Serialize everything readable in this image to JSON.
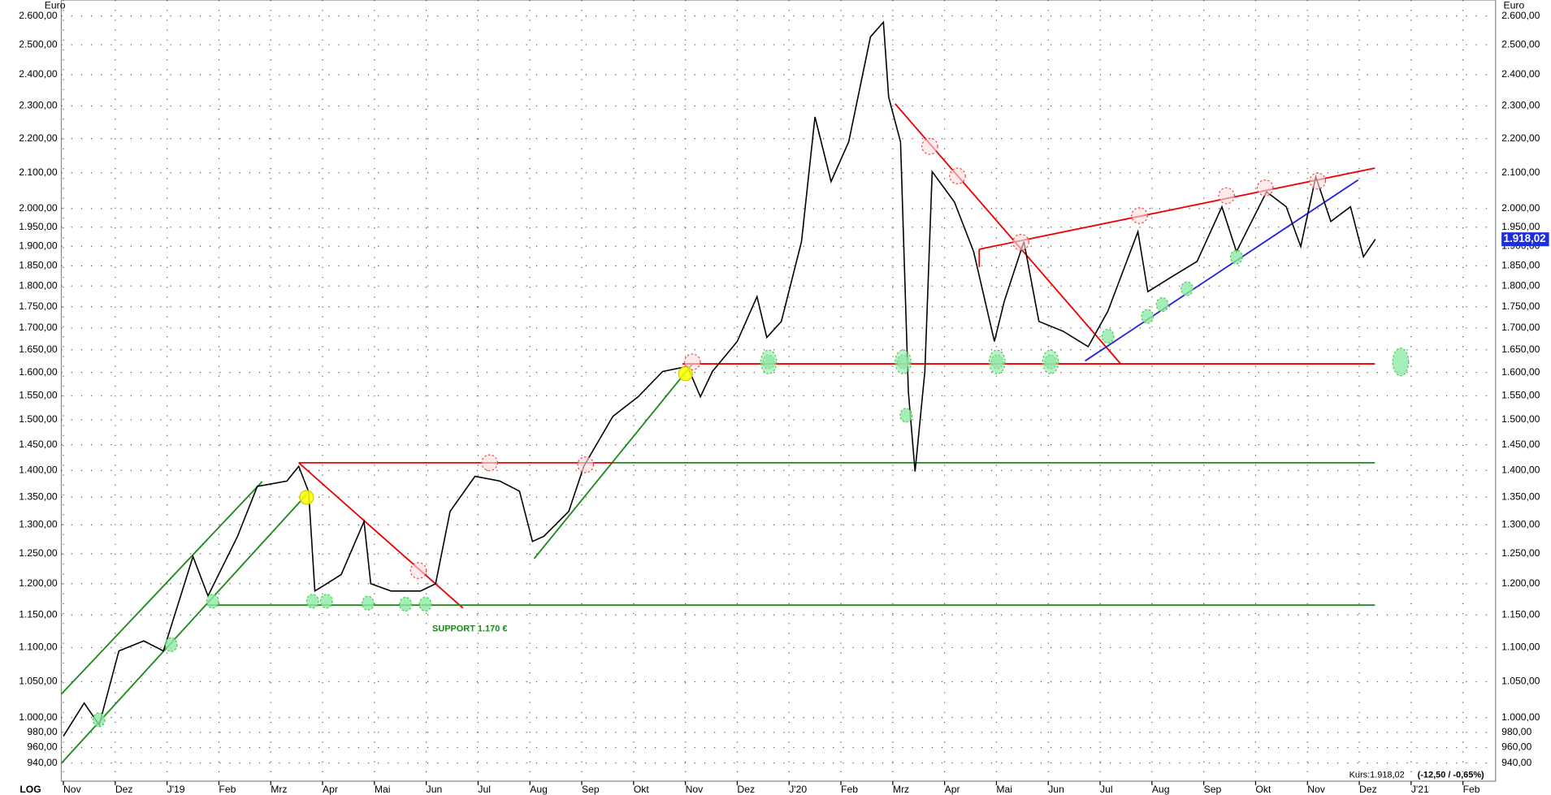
{
  "chart_data": {
    "type": "line",
    "scale": "log",
    "grid": true,
    "color": "#000000",
    "y_unit_left": "Euro",
    "y_unit_right": "Euro",
    "scale_label": "LOG",
    "annotation": "SUPPORT 1.170 €",
    "quote_label": "Kurs:1.918,02",
    "quote_change": "(-12,50 / -0,65%)",
    "last_price": {
      "value": 1918.02,
      "label": "1.918,02"
    },
    "xlim": [
      -0.04,
      27.63
    ],
    "xticks": [
      {
        "value": 0,
        "label": "Nov"
      },
      {
        "value": 1,
        "label": "Dez"
      },
      {
        "value": 2,
        "label": "J'19"
      },
      {
        "value": 3,
        "label": "Feb"
      },
      {
        "value": 4,
        "label": "Mrz"
      },
      {
        "value": 5,
        "label": "Apr"
      },
      {
        "value": 6,
        "label": "Mai"
      },
      {
        "value": 7,
        "label": "Jun"
      },
      {
        "value": 8,
        "label": "Jul"
      },
      {
        "value": 9,
        "label": "Aug"
      },
      {
        "value": 10,
        "label": "Sep"
      },
      {
        "value": 11,
        "label": "Okt"
      },
      {
        "value": 12,
        "label": "Nov"
      },
      {
        "value": 13,
        "label": "Dez"
      },
      {
        "value": 14,
        "label": "J'20"
      },
      {
        "value": 15,
        "label": "Feb"
      },
      {
        "value": 16,
        "label": "Mrz"
      },
      {
        "value": 17,
        "label": "Apr"
      },
      {
        "value": 18,
        "label": "Mai"
      },
      {
        "value": 19,
        "label": "Jun"
      },
      {
        "value": 20,
        "label": "Jul"
      },
      {
        "value": 21,
        "label": "Aug"
      },
      {
        "value": 22,
        "label": "Sep"
      },
      {
        "value": 23,
        "label": "Okt"
      },
      {
        "value": 24,
        "label": "Nov"
      },
      {
        "value": 25,
        "label": "Dez"
      },
      {
        "value": 26,
        "label": "J'21"
      },
      {
        "value": 27,
        "label": "Feb"
      }
    ],
    "ylim": [
      917,
      2657
    ],
    "yticks": [
      {
        "value": 940,
        "label": "940,00"
      },
      {
        "value": 960,
        "label": "960,00"
      },
      {
        "value": 980,
        "label": "980,00"
      },
      {
        "value": 1000,
        "label": "1.000,00"
      },
      {
        "value": 1050,
        "label": "1.050,00"
      },
      {
        "value": 1100,
        "label": "1.100,00"
      },
      {
        "value": 1150,
        "label": "1.150,00"
      },
      {
        "value": 1200,
        "label": "1.200,00"
      },
      {
        "value": 1250,
        "label": "1.250,00"
      },
      {
        "value": 1300,
        "label": "1.300,00"
      },
      {
        "value": 1350,
        "label": "1.350,00"
      },
      {
        "value": 1400,
        "label": "1.400,00"
      },
      {
        "value": 1450,
        "label": "1.450,00"
      },
      {
        "value": 1500,
        "label": "1.500,00"
      },
      {
        "value": 1550,
        "label": "1.550,00"
      },
      {
        "value": 1600,
        "label": "1.600,00"
      },
      {
        "value": 1650,
        "label": "1.650,00"
      },
      {
        "value": 1700,
        "label": "1.700,00"
      },
      {
        "value": 1750,
        "label": "1.750,00"
      },
      {
        "value": 1800,
        "label": "1.800,00"
      },
      {
        "value": 1850,
        "label": "1.850,00"
      },
      {
        "value": 1900,
        "label": "1.900,00"
      },
      {
        "value": 1950,
        "label": "1.950,00"
      },
      {
        "value": 2000,
        "label": "2.000,00"
      },
      {
        "value": 2100,
        "label": "2.100,00"
      },
      {
        "value": 2200,
        "label": "2.200,00"
      },
      {
        "value": 2300,
        "label": "2.300,00"
      },
      {
        "value": 2400,
        "label": "2.400,00"
      },
      {
        "value": 2500,
        "label": "2.500,00"
      },
      {
        "value": 2600,
        "label": "2.600,00"
      }
    ],
    "x": [
      0,
      0.4,
      0.69,
      1.07,
      1.55,
      1.93,
      2.5,
      2.79,
      3.36,
      3.74,
      4.31,
      4.54,
      4.73,
      4.85,
      5.08,
      5.36,
      5.8,
      5.93,
      6.32,
      6.89,
      7.18,
      7.46,
      7.94,
      8.42,
      8.8,
      9.05,
      9.27,
      9.75,
      10.04,
      10.6,
      11.09,
      11.56,
      12.04,
      12.29,
      12.52,
      13,
      13.38,
      13.57,
      13.85,
      14.24,
      14.5,
      14.81,
      15.15,
      15.57,
      15.82,
      15.92,
      16.15,
      16.3,
      16.43,
      16.62,
      16.76,
      17.19,
      17.56,
      17.96,
      18.15,
      18.53,
      18.82,
      19.29,
      19.77,
      20.15,
      20.73,
      20.92,
      21.39,
      21.87,
      22.35,
      22.63,
      23.21,
      23.59,
      23.87,
      24.16,
      24.45,
      24.83,
      25.08,
      25.31
    ],
    "values": [
      975,
      1020,
      990,
      1095,
      1110,
      1095,
      1245,
      1180,
      1280,
      1370,
      1380,
      1408,
      1360,
      1188,
      1200,
      1215,
      1306,
      1200,
      1188,
      1188,
      1200,
      1324,
      1389,
      1380,
      1361,
      1271,
      1280,
      1324,
      1408,
      1507,
      1548,
      1602,
      1613,
      1548,
      1602,
      1669,
      1774,
      1678,
      1715,
      1912,
      2266,
      2075,
      2190,
      2527,
      2578,
      2328,
      2190,
      1559,
      1398,
      1602,
      2103,
      2018,
      1886,
      1669,
      1762,
      1912,
      1715,
      1692,
      1657,
      1739,
      1938,
      1786,
      1823,
      1861,
      2005,
      1886,
      2046,
      2005,
      1899,
      2089,
      1965,
      2005,
      1873,
      1918.02
    ]
  }
}
